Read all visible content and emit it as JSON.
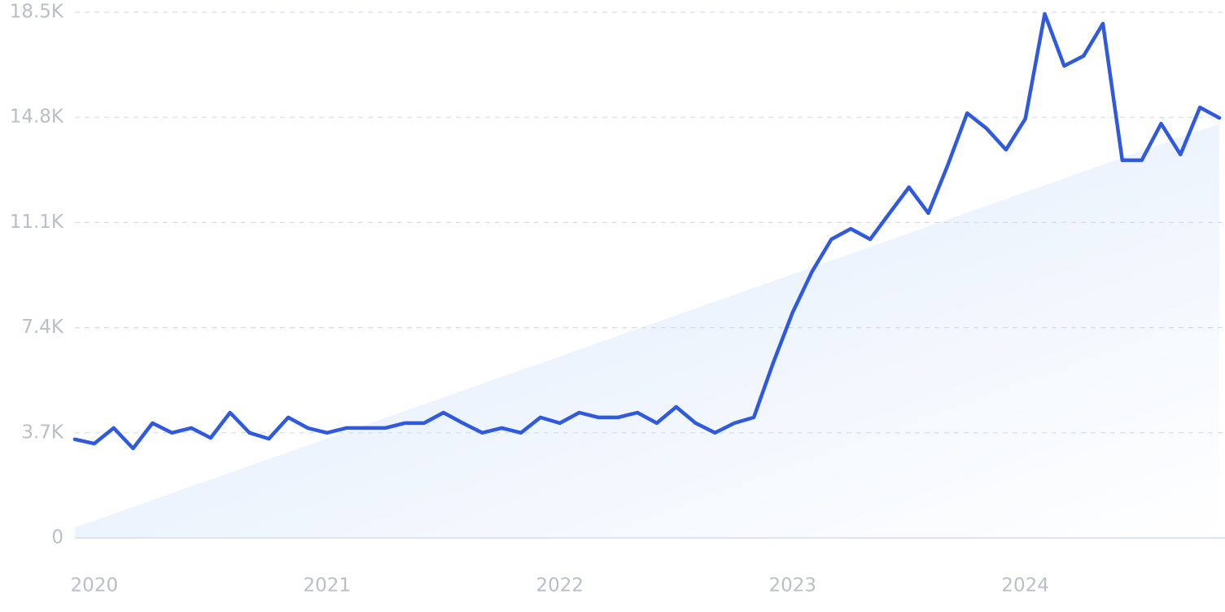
{
  "chart_data": {
    "type": "line",
    "categories": [
      null,
      "2020",
      null,
      null,
      null,
      null,
      null,
      null,
      null,
      null,
      null,
      null,
      null,
      "2021",
      null,
      null,
      null,
      null,
      null,
      null,
      null,
      null,
      null,
      null,
      null,
      "2022",
      null,
      null,
      null,
      null,
      null,
      null,
      null,
      null,
      null,
      null,
      null,
      "2023",
      null,
      null,
      null,
      null,
      null,
      null,
      null,
      null,
      null,
      null,
      null,
      "2024",
      null,
      null,
      null,
      null,
      null,
      null,
      null,
      null,
      null,
      null
    ],
    "series": [
      {
        "color": "#2f5ae0",
        "values": [
          3470,
          3320,
          3870,
          3150,
          4040,
          3700,
          3870,
          3520,
          4410,
          3700,
          3490,
          4240,
          3870,
          3700,
          3870,
          3870,
          3870,
          4040,
          4040,
          4410,
          4040,
          3700,
          3870,
          3700,
          4240,
          4040,
          4410,
          4240,
          4240,
          4410,
          4040,
          4610,
          4040,
          3700,
          4040,
          4240,
          6160,
          7930,
          9370,
          10510,
          10880,
          10510,
          11430,
          12340,
          11430,
          13120,
          14950,
          14410,
          13660,
          14750,
          18440,
          16610,
          16960,
          18100,
          13290,
          13290,
          14580,
          13490,
          15150,
          14780
        ]
      }
    ],
    "trend": [
      370,
      14580
    ],
    "ylim": [
      0,
      18500
    ],
    "yticks": [
      0,
      {
        "value": 3700,
        "label": "3.7K"
      },
      {
        "value": 7400,
        "label": "7.4K"
      },
      {
        "value": 11100,
        "label": "11.1K"
      },
      {
        "value": 14800,
        "label": "14.8K"
      },
      {
        "value": 18500,
        "label": "18.5K"
      }
    ],
    "grid": true
  }
}
